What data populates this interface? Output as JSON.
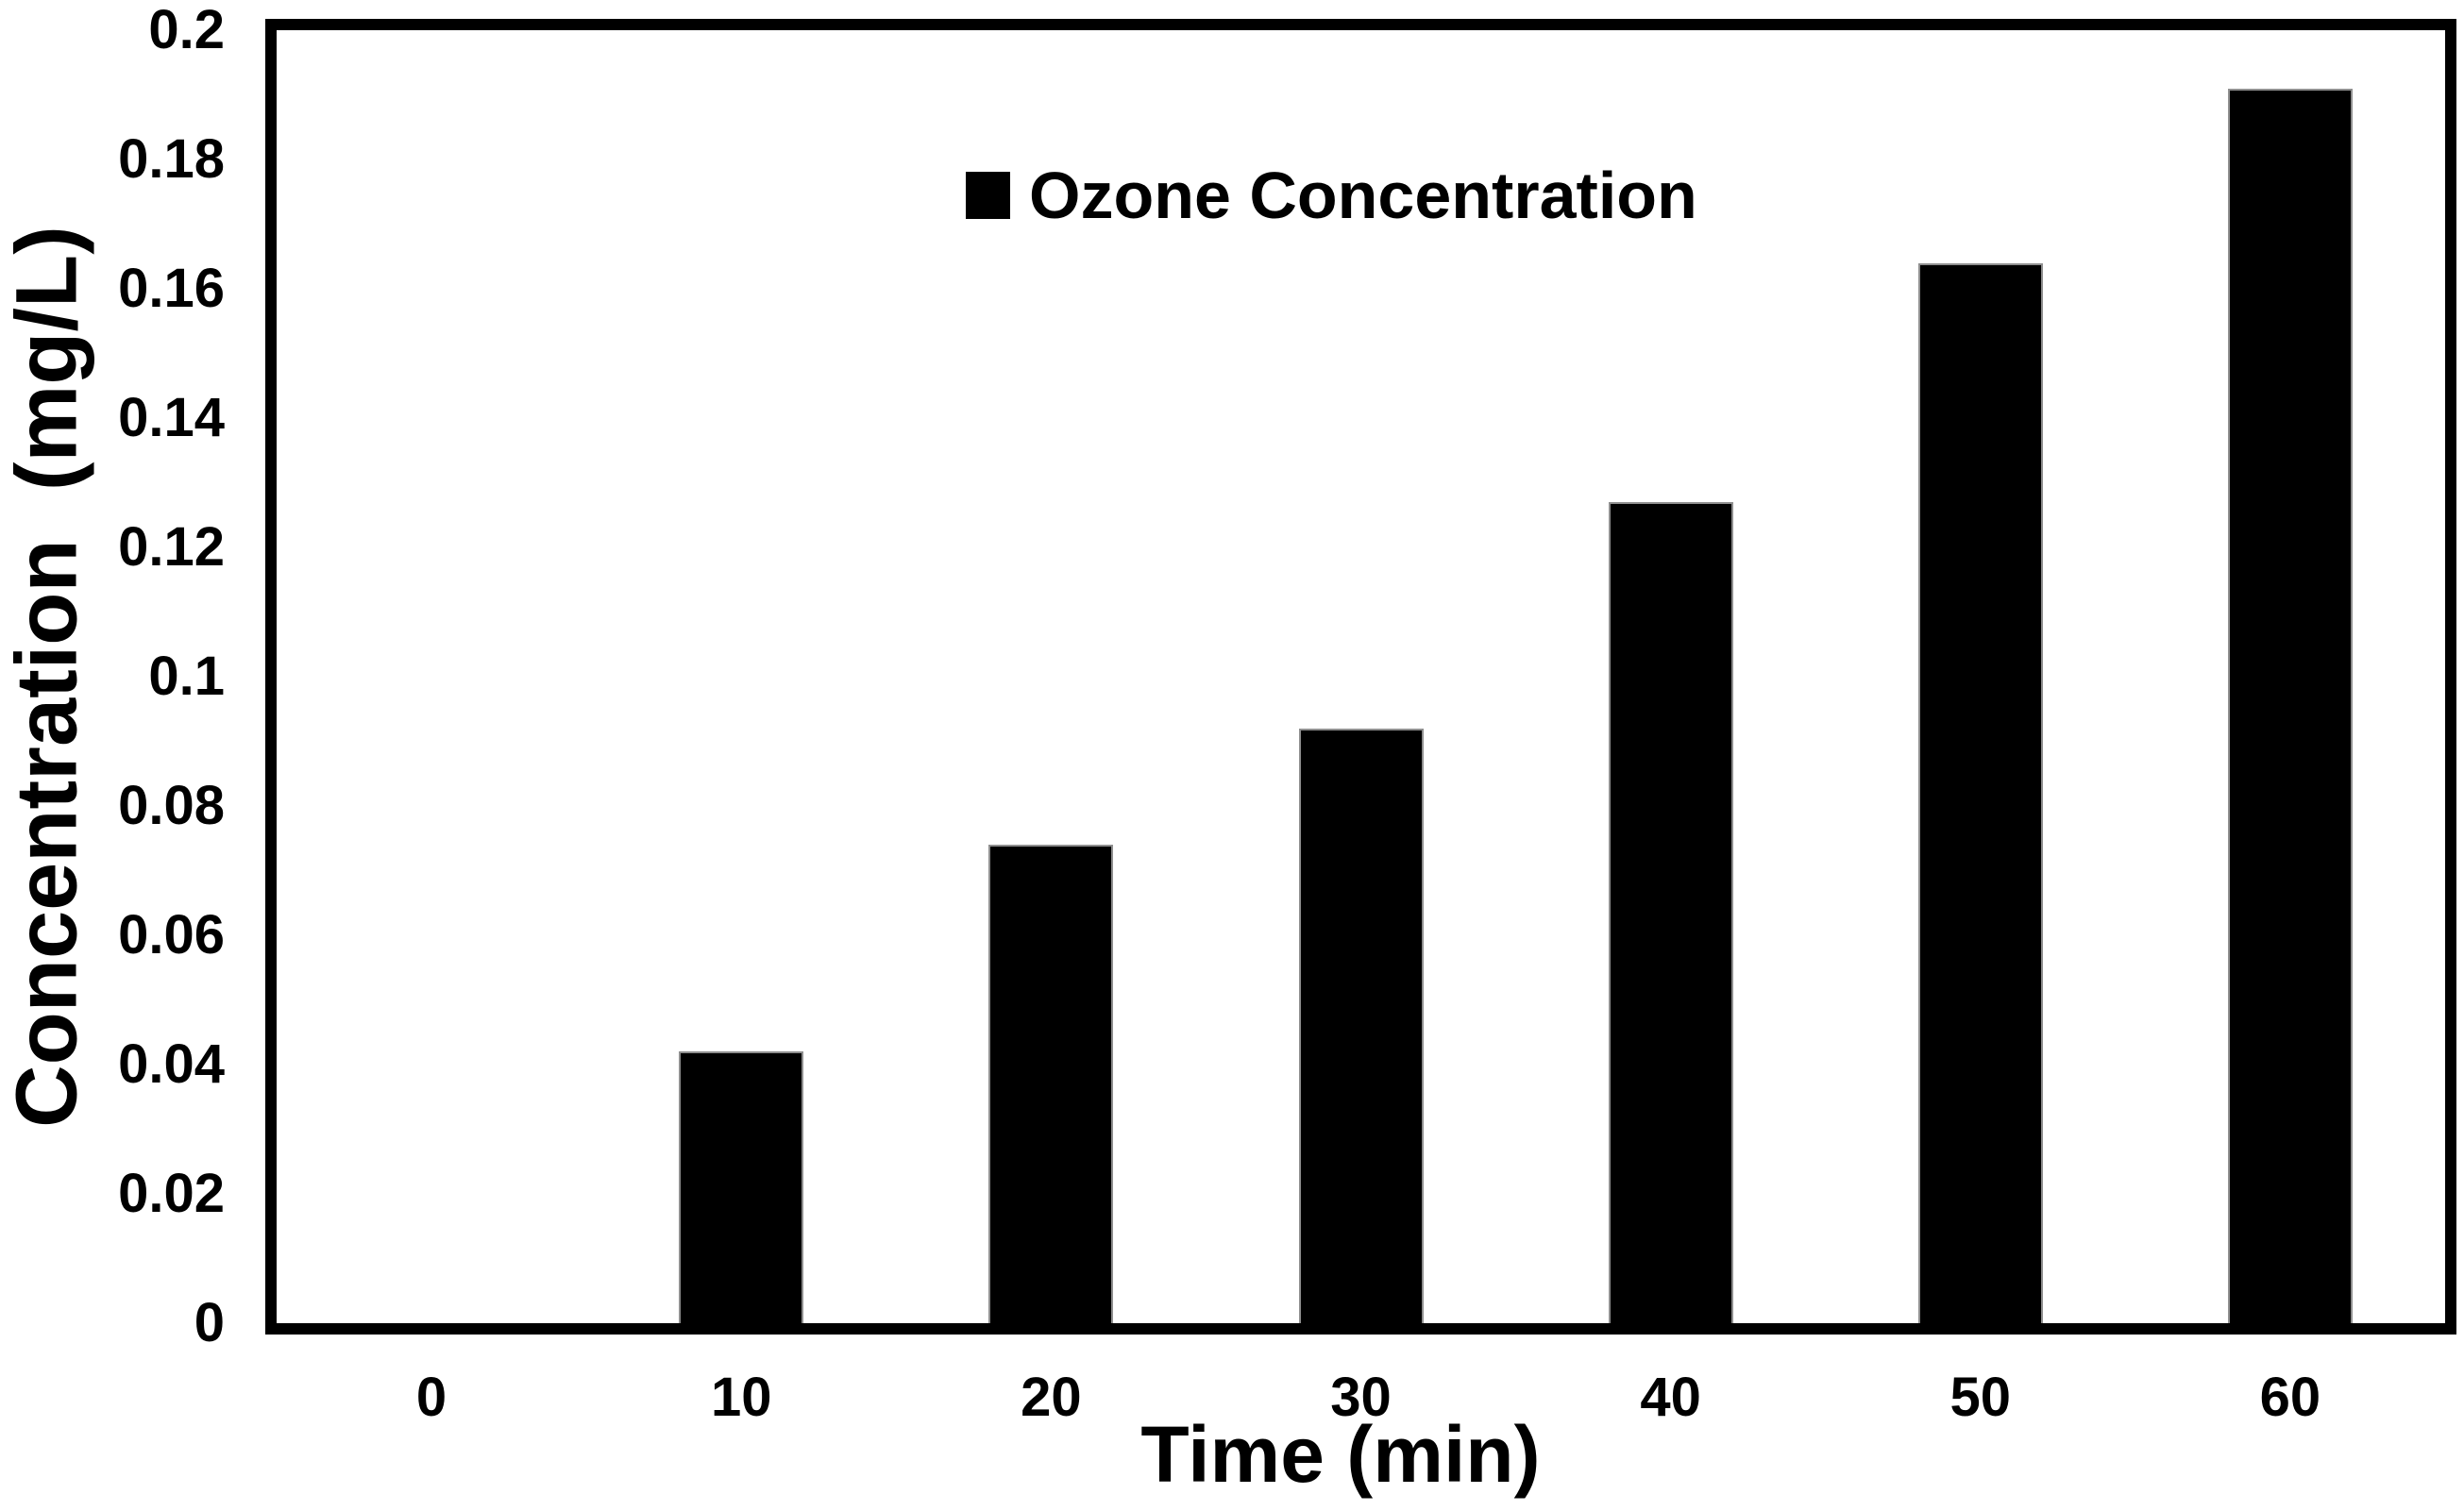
{
  "chart_data": {
    "type": "bar",
    "title": "",
    "xlabel": "Time (min)",
    "ylabel": "Concentration  (mg/L)",
    "categories": [
      "0",
      "10",
      "20",
      "30",
      "40",
      "50",
      "60"
    ],
    "series": [
      {
        "name": "Ozone Concentration",
        "values": [
          0,
          0.042,
          0.074,
          0.092,
          0.127,
          0.164,
          0.191
        ]
      }
    ],
    "legend": {
      "label": "Ozone Concentration",
      "position": "top-left-inside"
    },
    "ylim": [
      0,
      0.2
    ],
    "ytick_values": [
      0,
      0.02,
      0.04,
      0.06,
      0.08,
      0.1,
      0.12,
      0.14,
      0.16,
      0.18,
      0.2
    ],
    "ytick_labels": [
      "0",
      "0.02",
      "0.04",
      "0.06",
      "0.08",
      "0.1",
      "0.12",
      "0.14",
      "0.16",
      "0.18",
      "0.2"
    ],
    "grid": false,
    "frame": "full-box",
    "colors": {
      "bar_fill": "#000000",
      "bar_outline": "#8f8f8f",
      "axis": "#000000",
      "text": "#000000",
      "background": "#ffffff"
    }
  }
}
